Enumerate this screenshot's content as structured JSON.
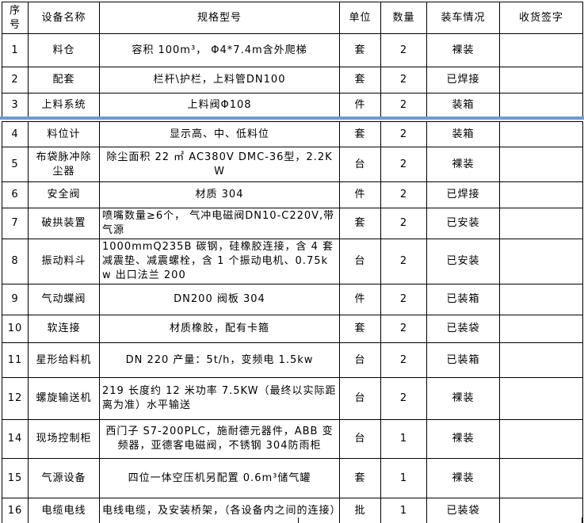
{
  "colors": {
    "border": "#000000",
    "freeze_line": "#6f9ad1",
    "background": "#ffffff"
  },
  "table": {
    "headers": [
      "序号",
      "设备名称",
      "规格型号",
      "单位",
      "数量",
      "装车情况",
      "收货签字"
    ],
    "rows": [
      {
        "no": "1",
        "name": "料仓",
        "spec": "容积 100m³， Φ4*7.4m含外爬梯",
        "unit": "套",
        "qty": "2",
        "status": "裸装",
        "sign": ""
      },
      {
        "no": "2",
        "name": "配套",
        "spec": "栏杆\\护栏，上料管DN100",
        "unit": "套",
        "qty": "2",
        "status": "已焊接",
        "sign": ""
      },
      {
        "no": "3",
        "name": "上料系统",
        "spec": "上料阀Φ108",
        "unit": "件",
        "qty": "2",
        "status": "装箱",
        "sign": ""
      },
      {
        "no": "4",
        "name": "料位计",
        "spec": "显示高、中、低料位",
        "unit": "套",
        "qty": "2",
        "status": "装箱",
        "sign": ""
      },
      {
        "no": "5",
        "name": "布袋脉冲除尘器",
        "spec": "除尘面积 22 ㎡ AC380V DMC-36型，2.2KW",
        "unit": "台",
        "qty": "2",
        "status": "裸装",
        "sign": ""
      },
      {
        "no": "6",
        "name": "安全阀",
        "spec": "材质 304",
        "unit": "件",
        "qty": "2",
        "status": "已焊接",
        "sign": ""
      },
      {
        "no": "7",
        "name": "破拱装置",
        "spec": "喷嘴数量≥6个， 气冲电磁阀DN10-C220V,带气源",
        "unit": "套",
        "qty": "2",
        "status": "已安装",
        "sign": ""
      },
      {
        "no": "8",
        "name": "振动料斗",
        "spec": "1000mmQ235B 碳钢，硅橡胶连接，含 4 套减震垫、减震螺栓，含 1 个振动电机、0.75kw 出口法兰 200",
        "unit": "台",
        "qty": "2",
        "status": "已安装",
        "sign": ""
      },
      {
        "no": "9",
        "name": "气动蝶阀",
        "spec": "DN200 阀板 304",
        "unit": "件",
        "qty": "2",
        "status": "已装箱",
        "sign": ""
      },
      {
        "no": "10",
        "name": "软连接",
        "spec": "材质橡胶，配有卡箍",
        "unit": "套",
        "qty": "2",
        "status": "已装袋",
        "sign": ""
      },
      {
        "no": "11",
        "name": "星形给料机",
        "spec": "DN 220 产量：5t/h，变频电 1.5kw",
        "unit": "台",
        "qty": "2",
        "status": "已装箱",
        "sign": ""
      },
      {
        "no": "12",
        "name": "螺旋输送机",
        "spec": "219 长度约 12 米功率 7.5KW（最终以实际距离为准）水平输送",
        "unit": "台",
        "qty": "2",
        "status": "裸装",
        "sign": ""
      },
      {
        "no": "14",
        "name": "现场控制柜",
        "spec": "西门子 S7-200PLC，施耐德元器件，ABB 变频器，亚德客电磁阀，不锈钢 304防雨柜",
        "unit": "台",
        "qty": "1",
        "status": "裸装",
        "sign": ""
      },
      {
        "no": "15",
        "name": "气源设备",
        "spec": "四位一体空压机另配置 0.6m³储气罐",
        "unit": "套",
        "qty": "1",
        "status": "裸装",
        "sign": ""
      },
      {
        "no": "16",
        "name": "电缆电线",
        "spec": "电线电缆，及安装桥架，（各设备内之间的连接）",
        "unit": "批",
        "qty": "1",
        "status": "已装袋",
        "sign": ""
      }
    ]
  }
}
